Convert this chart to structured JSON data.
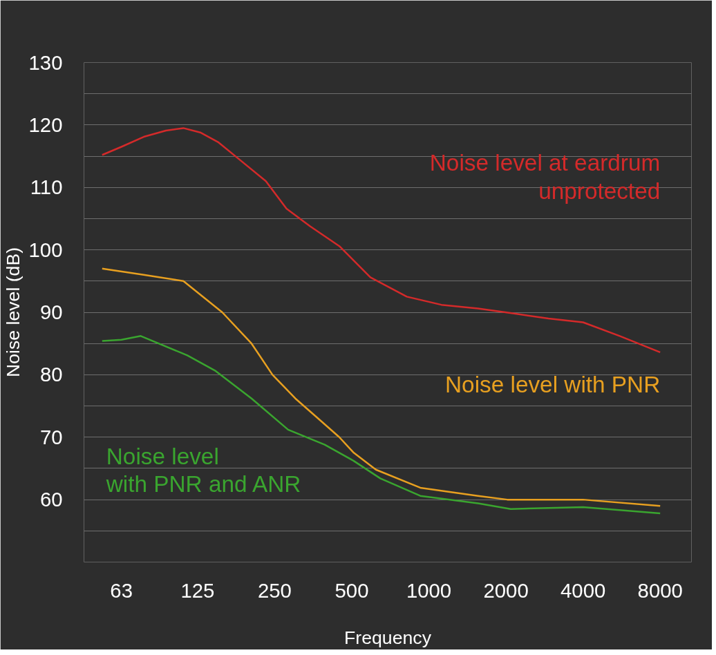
{
  "chart_data": {
    "type": "line",
    "xlabel": "Frequency",
    "ylabel": "Noise level (dB)",
    "log": "x",
    "grid": "y",
    "legend": false,
    "marker": "none",
    "line_style": "solid",
    "xlim": [
      45,
      10600
    ],
    "xticks": [
      63,
      125,
      250,
      500,
      1000,
      2000,
      4000,
      8000
    ],
    "ylim": [
      50,
      130
    ],
    "yticks": [
      {
        "value": 50,
        "label": null
      },
      {
        "value": 55,
        "label": null
      },
      60,
      {
        "value": 65,
        "label": null
      },
      70,
      {
        "value": 75,
        "label": null
      },
      80,
      {
        "value": 85,
        "label": null
      },
      90,
      {
        "value": 95,
        "label": null
      },
      100,
      {
        "value": 105,
        "label": null
      },
      110,
      {
        "value": 115,
        "label": null
      },
      120,
      {
        "value": 125,
        "label": null
      },
      130
    ],
    "series": [
      {
        "name": "Noise level at eardrum\nunprotected",
        "color": "#d42a2a",
        "x": [
          53,
          63,
          77,
          94,
          110,
          128,
          151,
          178,
          231,
          278,
          343,
          447,
          591,
          820,
          1119,
          1556,
          2152,
          2932,
          4000,
          5565,
          8000
        ],
        "values": [
          115.2,
          116.5,
          118.1,
          119.1,
          119.5,
          118.8,
          117.2,
          114.8,
          111,
          106.6,
          103.8,
          100.6,
          95.6,
          92.5,
          91.2,
          90.6,
          89.8,
          89,
          88.4,
          86.2,
          83.6
        ]
      },
      {
        "name": "Noise level with PNR",
        "color": "#e8a020",
        "x": [
          53,
          77,
          110,
          156,
          203,
          245,
          301,
          367,
          447,
          509,
          621,
          926,
          1556,
          2025,
          2932,
          4000,
          8000
        ],
        "values": [
          97,
          96,
          95,
          90,
          85,
          80,
          76.2,
          73.1,
          70,
          67.5,
          64.8,
          61.9,
          60.6,
          60,
          60,
          60,
          59
        ]
      },
      {
        "name": "Noise level\nwith PNR and ANR",
        "color": "#3aa52f",
        "x": [
          53,
          63,
          75,
          114,
          147,
          203,
          282,
          392,
          509,
          646,
          926,
          1556,
          2088,
          4000,
          8000
        ],
        "values": [
          85.4,
          85.6,
          86.2,
          83.1,
          80.6,
          76.2,
          71.2,
          68.8,
          66.2,
          63.4,
          60.6,
          59.4,
          58.5,
          58.8,
          57.8
        ]
      }
    ]
  }
}
